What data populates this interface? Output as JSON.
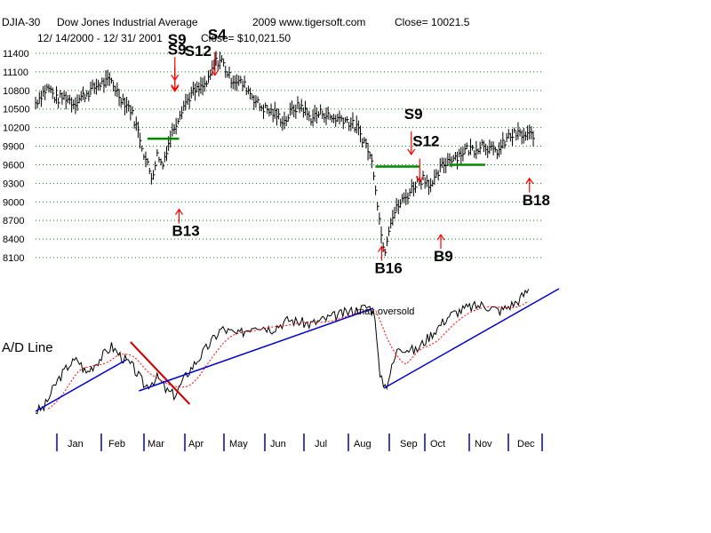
{
  "header": {
    "ticker": "DJIA-30",
    "name": "Dow Jones Industrial Average",
    "date_range": "12/ 14/2000 -  12/ 31/ 2001",
    "year_site": "2009 www.tigersoft.com",
    "close_label": "Close=  10021.5",
    "close_text": "Close= $10,021.50"
  },
  "chart_data": {
    "type": "bar",
    "title": "DJIA-30  Dow Jones Industrial Average",
    "price_axis": {
      "ticks": [
        11400,
        11100,
        10800,
        10500,
        10200,
        9900,
        9600,
        9300,
        9000,
        8700,
        8400,
        8100
      ],
      "tick_labels": [
        "11400",
        "11100",
        "10800",
        "10500",
        "10200",
        "9900",
        "9600",
        "9300",
        "9000",
        "8700",
        "8400",
        "8100"
      ],
      "ylim": [
        7900,
        11600
      ]
    },
    "months": [
      "Jan",
      "Feb",
      "Mar",
      "Apr",
      "May",
      "Jun",
      "Jul",
      "Aug",
      "Sep",
      "Oct",
      "Nov",
      "Dec"
    ],
    "price_series": [
      {
        "t": 0.0,
        "v": 10600
      },
      {
        "t": 0.15,
        "v": 10750
      },
      {
        "t": 0.3,
        "v": 10850
      },
      {
        "t": 0.5,
        "v": 10650
      },
      {
        "t": 0.7,
        "v": 10700
      },
      {
        "t": 0.9,
        "v": 10600
      },
      {
        "t": 1.2,
        "v": 10750
      },
      {
        "t": 1.5,
        "v": 10900
      },
      {
        "t": 1.8,
        "v": 10950
      },
      {
        "t": 2.0,
        "v": 10700
      },
      {
        "t": 2.25,
        "v": 10500
      },
      {
        "t": 2.45,
        "v": 10100
      },
      {
        "t": 2.6,
        "v": 9700
      },
      {
        "t": 2.75,
        "v": 9400
      },
      {
        "t": 2.9,
        "v": 9800
      },
      {
        "t": 3.0,
        "v": 9550
      },
      {
        "t": 3.1,
        "v": 9850
      },
      {
        "t": 3.25,
        "v": 10150
      },
      {
        "t": 3.45,
        "v": 10500
      },
      {
        "t": 3.7,
        "v": 10750
      },
      {
        "t": 3.95,
        "v": 10850
      },
      {
        "t": 4.1,
        "v": 10950
      },
      {
        "t": 4.25,
        "v": 11250
      },
      {
        "t": 4.4,
        "v": 11300
      },
      {
        "t": 4.6,
        "v": 11000
      },
      {
        "t": 4.8,
        "v": 10950
      },
      {
        "t": 5.0,
        "v": 10850
      },
      {
        "t": 5.3,
        "v": 10550
      },
      {
        "t": 5.6,
        "v": 10450
      },
      {
        "t": 5.9,
        "v": 10300
      },
      {
        "t": 6.1,
        "v": 10500
      },
      {
        "t": 6.3,
        "v": 10550
      },
      {
        "t": 6.5,
        "v": 10350
      },
      {
        "t": 6.8,
        "v": 10450
      },
      {
        "t": 7.0,
        "v": 10350
      },
      {
        "t": 7.3,
        "v": 10350
      },
      {
        "t": 7.6,
        "v": 10200
      },
      {
        "t": 7.85,
        "v": 9900
      },
      {
        "t": 8.0,
        "v": 9550
      },
      {
        "t": 8.1,
        "v": 9000
      },
      {
        "t": 8.2,
        "v": 8400
      },
      {
        "t": 8.28,
        "v": 8250
      },
      {
        "t": 8.4,
        "v": 8700
      },
      {
        "t": 8.6,
        "v": 8950
      },
      {
        "t": 8.8,
        "v": 9100
      },
      {
        "t": 9.0,
        "v": 9300
      },
      {
        "t": 9.2,
        "v": 9400
      },
      {
        "t": 9.4,
        "v": 9250
      },
      {
        "t": 9.6,
        "v": 9550
      },
      {
        "t": 9.8,
        "v": 9700
      },
      {
        "t": 10.0,
        "v": 9750
      },
      {
        "t": 10.2,
        "v": 9850
      },
      {
        "t": 10.4,
        "v": 9850
      },
      {
        "t": 10.6,
        "v": 9950
      },
      {
        "t": 10.85,
        "v": 9800
      },
      {
        "t": 11.0,
        "v": 9850
      },
      {
        "t": 11.2,
        "v": 10050
      },
      {
        "t": 11.4,
        "v": 10100
      },
      {
        "t": 11.6,
        "v": 10050
      },
      {
        "t": 11.8,
        "v": 10100
      }
    ],
    "levels": [
      {
        "name": "resistance-mar",
        "value": 10020,
        "t_start": 2.65,
        "t_end": 3.4
      },
      {
        "name": "resistance-sep",
        "value": 9570,
        "t_start": 8.05,
        "t_end": 9.1
      },
      {
        "name": "resistance-nov",
        "value": 9600,
        "t_start": 9.8,
        "t_end": 10.65
      }
    ],
    "signals": [
      {
        "id": "s9-mar",
        "label": "S9",
        "t": 3.3,
        "dir": "sell",
        "label_v": 11540
      },
      {
        "id": "s9-mar-2",
        "label": "S9",
        "t": 3.3,
        "dir": "sell",
        "label_v": 11380
      },
      {
        "id": "s12-mar",
        "label": "S12",
        "t": 3.3,
        "dir": "sell",
        "label_v": 11360,
        "dx": 0.4
      },
      {
        "id": "s4-may",
        "label": "S4",
        "t": 4.25,
        "dir": "sell",
        "label_v": 11620
      },
      {
        "id": "b13-apr",
        "label": "B13",
        "t": 3.4,
        "dir": "buy",
        "label_v": 8450
      },
      {
        "id": "s9-sep",
        "label": "S9",
        "t": 8.9,
        "dir": "sell",
        "label_v": 10340
      },
      {
        "id": "s12-oct",
        "label": "S12",
        "t": 9.1,
        "dir": "sell",
        "label_v": 9900
      },
      {
        "id": "b16-sep",
        "label": "B16",
        "t": 8.2,
        "dir": "buy",
        "label_v": 7850
      },
      {
        "id": "b9-oct",
        "label": "B9",
        "t": 9.6,
        "dir": "buy",
        "label_v": 8040
      },
      {
        "id": "b18-dec",
        "label": "B18",
        "t": 11.7,
        "dir": "buy",
        "label_v": 8950
      }
    ],
    "ad_line": {
      "label": "A/D Line",
      "annotation": "max.oversold",
      "ylim": [
        0,
        100
      ],
      "series": [
        {
          "t": 0.0,
          "v": 2
        },
        {
          "t": 0.2,
          "v": 6
        },
        {
          "t": 0.5,
          "v": 35
        },
        {
          "t": 0.8,
          "v": 55
        },
        {
          "t": 1.0,
          "v": 60
        },
        {
          "t": 1.2,
          "v": 45
        },
        {
          "t": 1.5,
          "v": 60
        },
        {
          "t": 1.8,
          "v": 75
        },
        {
          "t": 2.0,
          "v": 65
        },
        {
          "t": 2.3,
          "v": 52
        },
        {
          "t": 2.6,
          "v": 30
        },
        {
          "t": 2.9,
          "v": 40
        },
        {
          "t": 3.1,
          "v": 25
        },
        {
          "t": 3.3,
          "v": 20
        },
        {
          "t": 3.6,
          "v": 45
        },
        {
          "t": 4.0,
          "v": 70
        },
        {
          "t": 4.4,
          "v": 95
        },
        {
          "t": 4.8,
          "v": 88
        },
        {
          "t": 5.2,
          "v": 100
        },
        {
          "t": 5.6,
          "v": 95
        },
        {
          "t": 6.0,
          "v": 105
        },
        {
          "t": 6.5,
          "v": 100
        },
        {
          "t": 7.0,
          "v": 108
        },
        {
          "t": 7.5,
          "v": 115
        },
        {
          "t": 7.9,
          "v": 120
        },
        {
          "t": 8.05,
          "v": 110
        },
        {
          "t": 8.15,
          "v": 40
        },
        {
          "t": 8.3,
          "v": 30
        },
        {
          "t": 8.6,
          "v": 75
        },
        {
          "t": 9.0,
          "v": 70
        },
        {
          "t": 9.4,
          "v": 90
        },
        {
          "t": 9.8,
          "v": 110
        },
        {
          "t": 10.2,
          "v": 118
        },
        {
          "t": 10.6,
          "v": 122
        },
        {
          "t": 11.0,
          "v": 115
        },
        {
          "t": 11.4,
          "v": 125
        },
        {
          "t": 11.7,
          "v": 140
        }
      ],
      "trendlines": [
        {
          "name": "ad-trend-jan",
          "color": "#0000cc",
          "t1": 0.0,
          "v1": 2,
          "t2": 2.15,
          "v2": 60
        },
        {
          "name": "ad-trend-mar-red",
          "color": "#cc0000",
          "t1": 2.25,
          "v1": 80,
          "t2": 3.65,
          "v2": 10
        },
        {
          "name": "ad-trend-apr",
          "color": "#0000cc",
          "t1": 2.45,
          "v1": 25,
          "t2": 8.0,
          "v2": 118
        },
        {
          "name": "ad-trend-sep",
          "color": "#0000cc",
          "t1": 8.25,
          "v1": 28,
          "t2": 12.4,
          "v2": 140
        }
      ]
    },
    "colors": {
      "bars": "#000000",
      "grid": "#008800",
      "resistance": "#008800",
      "signal_arrow": "#ff0000",
      "ad_line": "#000000",
      "ad_ma": "#ff0000",
      "trend_blue": "#0000cc",
      "trend_red": "#cc0000",
      "month_tick": "#0000cc"
    }
  }
}
